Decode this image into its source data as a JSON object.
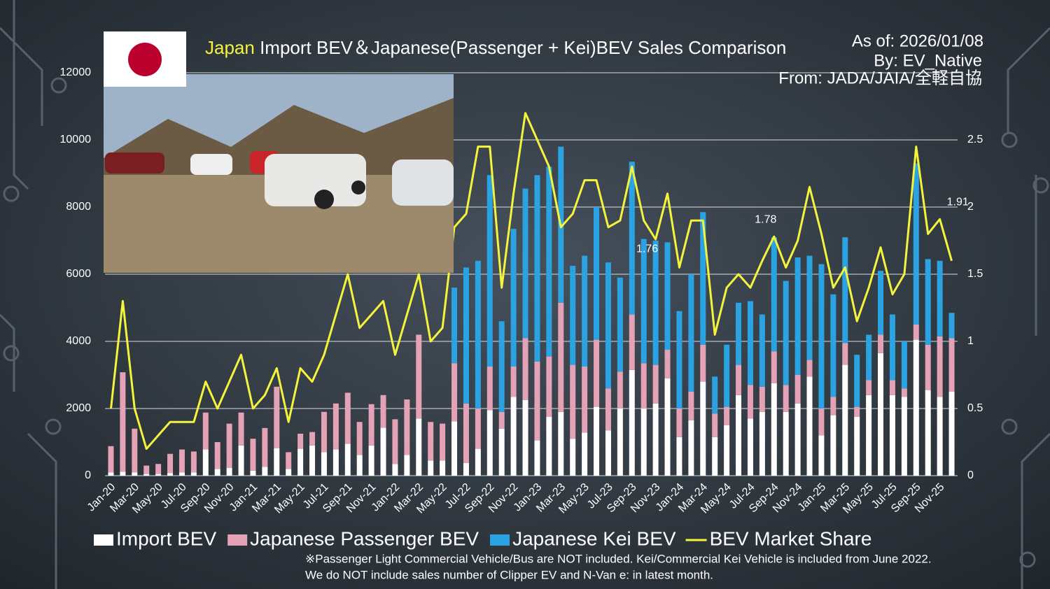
{
  "chart_data": {
    "type": "bar",
    "stacked": true,
    "title_highlight": "Japan",
    "title": "Import BEV＆Japanese(Passenger + Kei)BEV Sales Comparison",
    "as_of": "As of: 2026/01/08",
    "by": "By: EV_Native",
    "source": "From: JADA/JAIA/全軽自協",
    "notes": [
      "※Passenger Light Commercial Vehicle/Bus are NOT included. Kei/Commercial Kei Vehicle is included from June 2022.",
      "We do NOT include sales number of Clipper EV and N-Van e: in latest month."
    ],
    "categories": [
      "Jan-20",
      null,
      "Mar-20",
      null,
      "May-20",
      null,
      "Jul-20",
      null,
      "Sep-20",
      null,
      "Nov-20",
      null,
      "Jan-21",
      null,
      "Mar-21",
      null,
      "May-21",
      null,
      "Jul-21",
      null,
      "Sep-21",
      null,
      "Nov-21",
      null,
      "Jan-22",
      null,
      "Mar-22",
      null,
      "May-22",
      null,
      "Jul-22",
      null,
      "Sep-22",
      null,
      "Nov-22",
      null,
      "Jan-23",
      null,
      "Mar-23",
      null,
      "May-23",
      null,
      "Jul-23",
      null,
      "Sep-23",
      null,
      "Nov-23",
      null,
      "Jan-24",
      null,
      "Mar-24",
      null,
      "May-24",
      null,
      "Jul-24",
      null,
      "Sep-24",
      null,
      "Nov-24",
      null,
      "Jan-25",
      null,
      "Mar-25",
      null,
      "May-25",
      null,
      "Jul-25",
      null,
      "Sep-25",
      null,
      "Nov-25",
      null
    ],
    "series": [
      {
        "name": "Import BEV",
        "color": "#ffffff",
        "values": [
          100,
          120,
          100,
          50,
          50,
          80,
          100,
          100,
          780,
          200,
          230,
          900,
          150,
          260,
          820,
          200,
          800,
          900,
          700,
          780,
          950,
          620,
          900,
          1430,
          350,
          620,
          1700,
          450,
          450,
          1620,
          380,
          800,
          1950,
          1400,
          2350,
          2250,
          1050,
          1750,
          1900,
          1100,
          1280,
          2050,
          1350,
          2000,
          3150,
          2000,
          2150,
          2900,
          1150,
          1650,
          2800,
          1150,
          1500,
          2400,
          1700,
          1900,
          2750,
          1900,
          2150,
          2950,
          1200,
          1800,
          3300,
          1750,
          2400,
          3650,
          2400,
          2350,
          4050,
          2550,
          2350,
          2500
        ]
      },
      {
        "name": "Japanese Passenger BEV",
        "color": "#e3a2b5",
        "values": [
          780,
          2960,
          1300,
          250,
          300,
          570,
          680,
          620,
          1100,
          800,
          1320,
          980,
          950,
          1160,
          1830,
          500,
          450,
          400,
          1200,
          1370,
          1520,
          980,
          1230,
          970,
          1330,
          1650,
          2500,
          1150,
          1100,
          1730,
          1770,
          1200,
          1300,
          500,
          900,
          1850,
          2350,
          1800,
          3250,
          2200,
          1970,
          2000,
          1250,
          1100,
          1650,
          1350,
          1150,
          850,
          850,
          850,
          1100,
          700,
          550,
          900,
          1000,
          750,
          950,
          800,
          850,
          500,
          800,
          550,
          650,
          300,
          450,
          550,
          450,
          250,
          450,
          1350,
          1800,
          1600
        ]
      },
      {
        "name": "Japanese Kei BEV",
        "color": "#2ba3e2",
        "values": [
          0,
          0,
          0,
          0,
          0,
          0,
          0,
          0,
          0,
          0,
          0,
          0,
          0,
          0,
          0,
          0,
          0,
          0,
          0,
          0,
          0,
          0,
          0,
          0,
          0,
          0,
          0,
          0,
          0,
          2250,
          4050,
          4400,
          5700,
          2700,
          4100,
          4450,
          5550,
          5650,
          4650,
          2950,
          3300,
          3950,
          3750,
          2800,
          4550,
          3700,
          3700,
          3200,
          2900,
          3500,
          3950,
          1100,
          1850,
          1850,
          2500,
          2150,
          3400,
          3100,
          3500,
          3100,
          4300,
          3050,
          3150,
          1550,
          1350,
          1900,
          1950,
          1400,
          4800,
          2550,
          2250,
          750
        ]
      },
      {
        "name": "BEV Market Share",
        "color": "#f4f43c",
        "type": "line",
        "axis": "y2",
        "values": [
          0.5,
          1.3,
          0.5,
          0.2,
          0.3,
          0.4,
          0.4,
          0.4,
          0.7,
          0.5,
          0.7,
          0.9,
          0.5,
          0.6,
          0.8,
          0.4,
          0.8,
          0.7,
          0.9,
          1.2,
          1.5,
          1.1,
          1.2,
          1.3,
          0.9,
          1.2,
          1.5,
          1.0,
          1.1,
          1.85,
          1.95,
          2.45,
          2.45,
          1.4,
          2.1,
          2.7,
          2.5,
          2.3,
          1.85,
          1.95,
          2.2,
          2.2,
          1.85,
          1.9,
          2.3,
          1.9,
          1.76,
          2.1,
          1.55,
          1.9,
          1.9,
          1.05,
          1.4,
          1.5,
          1.4,
          1.6,
          1.78,
          1.55,
          1.75,
          2.15,
          1.8,
          1.4,
          1.55,
          1.15,
          1.4,
          1.7,
          1.35,
          1.5,
          2.45,
          1.8,
          1.91,
          1.6
        ]
      }
    ],
    "ylim": [
      0,
      12000
    ],
    "yticks": [
      0,
      2000,
      4000,
      6000,
      8000,
      10000,
      12000
    ],
    "y2lim": [
      0,
      3
    ],
    "y2ticks": [
      0,
      0.5,
      1,
      1.5,
      2,
      2.5
    ],
    "grid": true
  }
}
